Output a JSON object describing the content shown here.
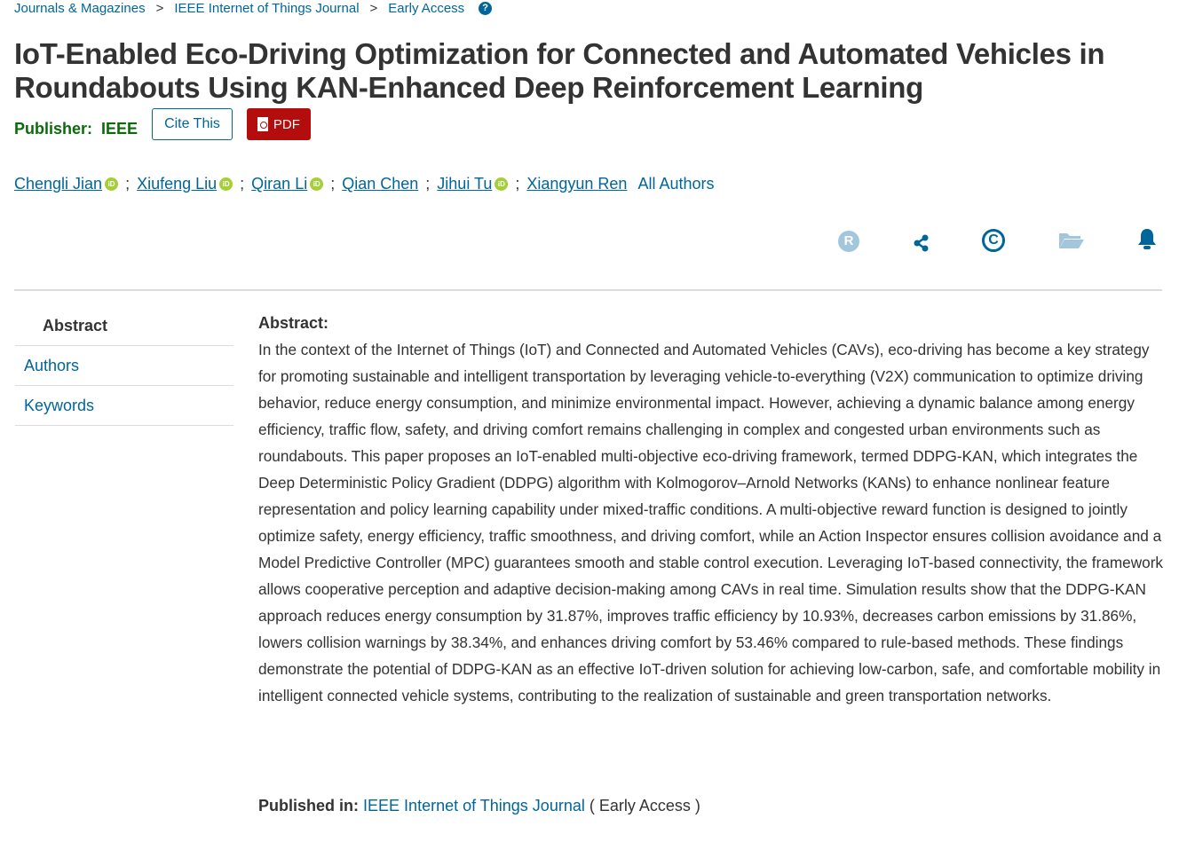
{
  "breadcrumb": [
    "Journals & Magazines",
    "IEEE Internet of Things Journal",
    "Early Access"
  ],
  "breadcrumb_sep": ">",
  "title": "IoT-Enabled Eco-Driving Optimization for Connected and Automated Vehicles in Roundabouts Using KAN-Enhanced Deep Reinforcement Learning",
  "publisher_label": "Publisher:",
  "publisher": "IEEE",
  "cite_label": "Cite This",
  "pdf_label": "PDF",
  "authors": [
    {
      "name": "Chengli Jian",
      "orcid": true
    },
    {
      "name": "Xiufeng Liu",
      "orcid": true
    },
    {
      "name": "Qiran Li",
      "orcid": true
    },
    {
      "name": "Qian Chen",
      "orcid": false
    },
    {
      "name": "Jihui Tu",
      "orcid": true
    },
    {
      "name": "Xiangyun Ren",
      "orcid": false
    }
  ],
  "all_authors": "All Authors",
  "action_icons": [
    "rights-icon",
    "share-icon",
    "copyright-icon",
    "folder-icon",
    "alert-bell-icon"
  ],
  "side_nav": [
    "Abstract",
    "Authors",
    "Keywords"
  ],
  "abstract_heading": "Abstract:",
  "abstract": "In the context of the Internet of Things (IoT) and Connected and Automated Vehicles (CAVs), eco-driving has become a key strategy for promoting sustainable and intelligent transportation by leveraging vehicle-to-everything (V2X) communication to optimize driving behavior, reduce energy consumption, and minimize environmental impact. However, achieving a dynamic balance among energy efficiency, traffic flow, safety, and driving comfort remains challenging in complex and congested urban environments such as roundabouts. This paper proposes an IoT-enabled multi-objective eco-driving framework, termed DDPG-KAN, which integrates the Deep Deterministic Policy Gradient (DDPG) algorithm with Kolmogorov–Arnold Networks (KANs) to enhance nonlinear feature representation and policy learning capability under mixed-traffic conditions. A multi-objective reward function is designed to jointly optimize safety, energy efficiency, traffic smoothness, and driving comfort, while an Action Inspector ensures collision avoidance and a Model Predictive Controller (MPC) guarantees smooth and stable control execution. Leveraging IoT-based connectivity, the framework allows cooperative perception and adaptive decision-making among CAVs in real time. Simulation results show that the DDPG-KAN approach reduces energy consumption by 31.87%, improves traffic efficiency by 10.93%, decreases carbon emissions by 31.86%, lowers collision warnings by 38.34%, and enhances driving comfort by 53.46% compared to rule-based methods. These findings demonstrate the potential of DDPG-KAN as an effective IoT-driven solution for achieving low-carbon, safe, and comfortable mobility in intelligent connected vehicle systems, contributing to the realization of sustainable and green transportation networks.",
  "published_in_label": "Published in:",
  "published_in_journal": "IEEE Internet of Things Journal",
  "published_in_status": "( Early Access )",
  "colors": {
    "link": "#006699",
    "publisher": "#0b6b0b",
    "pdf": "#b30d0d",
    "orcid": "#a6ce39"
  }
}
